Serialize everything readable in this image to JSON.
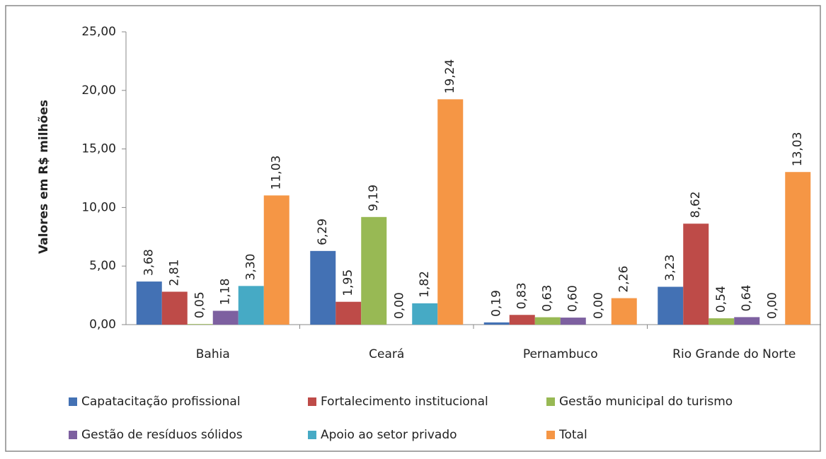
{
  "chart_data": {
    "type": "bar",
    "y_label": "Valores em R$ milhões",
    "categories": [
      "Bahia",
      "Ceará",
      "Pernambuco",
      "Rio Grande do Norte"
    ],
    "series": [
      {
        "name": "Capatacitação profissional",
        "color": "#4371b4",
        "values": [
          3.68,
          6.29,
          0.19,
          3.23
        ],
        "value_labels": [
          "3,68",
          "6,29",
          "0,19",
          "3,23"
        ]
      },
      {
        "name": "Fortalecimento institucional",
        "color": "#be4b48",
        "values": [
          2.81,
          1.95,
          0.83,
          8.62
        ],
        "value_labels": [
          "2,81",
          "1,95",
          "0,83",
          "8,62"
        ]
      },
      {
        "name": "Gestão municipal do turismo",
        "color": "#98b954",
        "values": [
          0.05,
          9.19,
          0.63,
          0.54
        ],
        "value_labels": [
          "0,05",
          "9,19",
          "0,63",
          "0,54"
        ]
      },
      {
        "name": "Gestão de resíduos sólidos",
        "color": "#7d60a0",
        "values": [
          1.18,
          0.0,
          0.6,
          0.64
        ],
        "value_labels": [
          "1,18",
          "0,00",
          "0,60",
          "0,64"
        ]
      },
      {
        "name": "Apoio ao setor privado",
        "color": "#46aac5",
        "values": [
          3.3,
          1.82,
          0.0,
          0.0
        ],
        "value_labels": [
          "3,30",
          "1,82",
          "0,00",
          "0,00"
        ]
      },
      {
        "name": "Total",
        "color": "#f59645",
        "values": [
          11.03,
          19.24,
          2.26,
          13.03
        ],
        "value_labels": [
          "11,03",
          "19,24",
          "2,26",
          "13,03"
        ]
      }
    ],
    "ylim": [
      0,
      25
    ],
    "yticks": [
      {
        "value": 0,
        "label": "0,00"
      },
      {
        "value": 5,
        "label": "5,00"
      },
      {
        "value": 10,
        "label": "10,00"
      },
      {
        "value": 15,
        "label": "15,00"
      },
      {
        "value": 20,
        "label": "20,00"
      },
      {
        "value": 25,
        "label": "25,00"
      }
    ],
    "legend": "bottom"
  }
}
